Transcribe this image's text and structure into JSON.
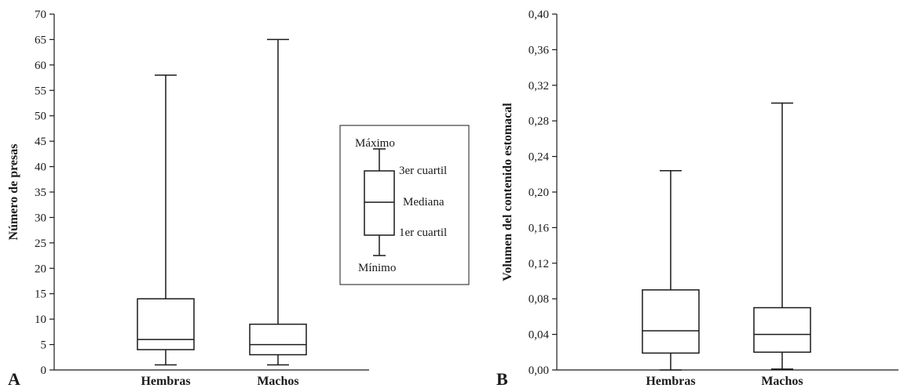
{
  "chart_data": [
    {
      "type": "box",
      "panel_label": "A",
      "ylabel": "Número de presas",
      "ylim": [
        0,
        70
      ],
      "yticks": [
        "0",
        "5",
        "10",
        "15",
        "20",
        "25",
        "30",
        "35",
        "40",
        "45",
        "50",
        "55",
        "60",
        "65",
        "70"
      ],
      "categories": [
        "Hembras",
        "Machos"
      ],
      "boxes": [
        {
          "category": "Hembras",
          "min": 1,
          "q1": 4,
          "median": 6,
          "q3": 14,
          "max": 58
        },
        {
          "category": "Machos",
          "min": 1,
          "q1": 3,
          "median": 5,
          "q3": 9,
          "max": 65
        }
      ],
      "legend": {
        "maximum": "Máximo",
        "q3": "3er cuartil",
        "median": "Mediana",
        "q1": "1er cuartil",
        "minimum": "Mínimo"
      }
    },
    {
      "type": "box",
      "panel_label": "B",
      "ylabel": "Volumen del contenido estomacal",
      "ylim": [
        0,
        0.4
      ],
      "yticks": [
        "0,00",
        "0,04",
        "0,08",
        "0,12",
        "0,16",
        "0,20",
        "0,24",
        "0,28",
        "0,32",
        "0,36",
        "0,40"
      ],
      "categories": [
        "Hembras",
        "Machos"
      ],
      "boxes": [
        {
          "category": "Hembras",
          "min": 0.0,
          "q1": 0.019,
          "median": 0.044,
          "q3": 0.09,
          "max": 0.224
        },
        {
          "category": "Machos",
          "min": 0.001,
          "q1": 0.02,
          "median": 0.04,
          "q3": 0.07,
          "max": 0.3
        }
      ]
    }
  ]
}
